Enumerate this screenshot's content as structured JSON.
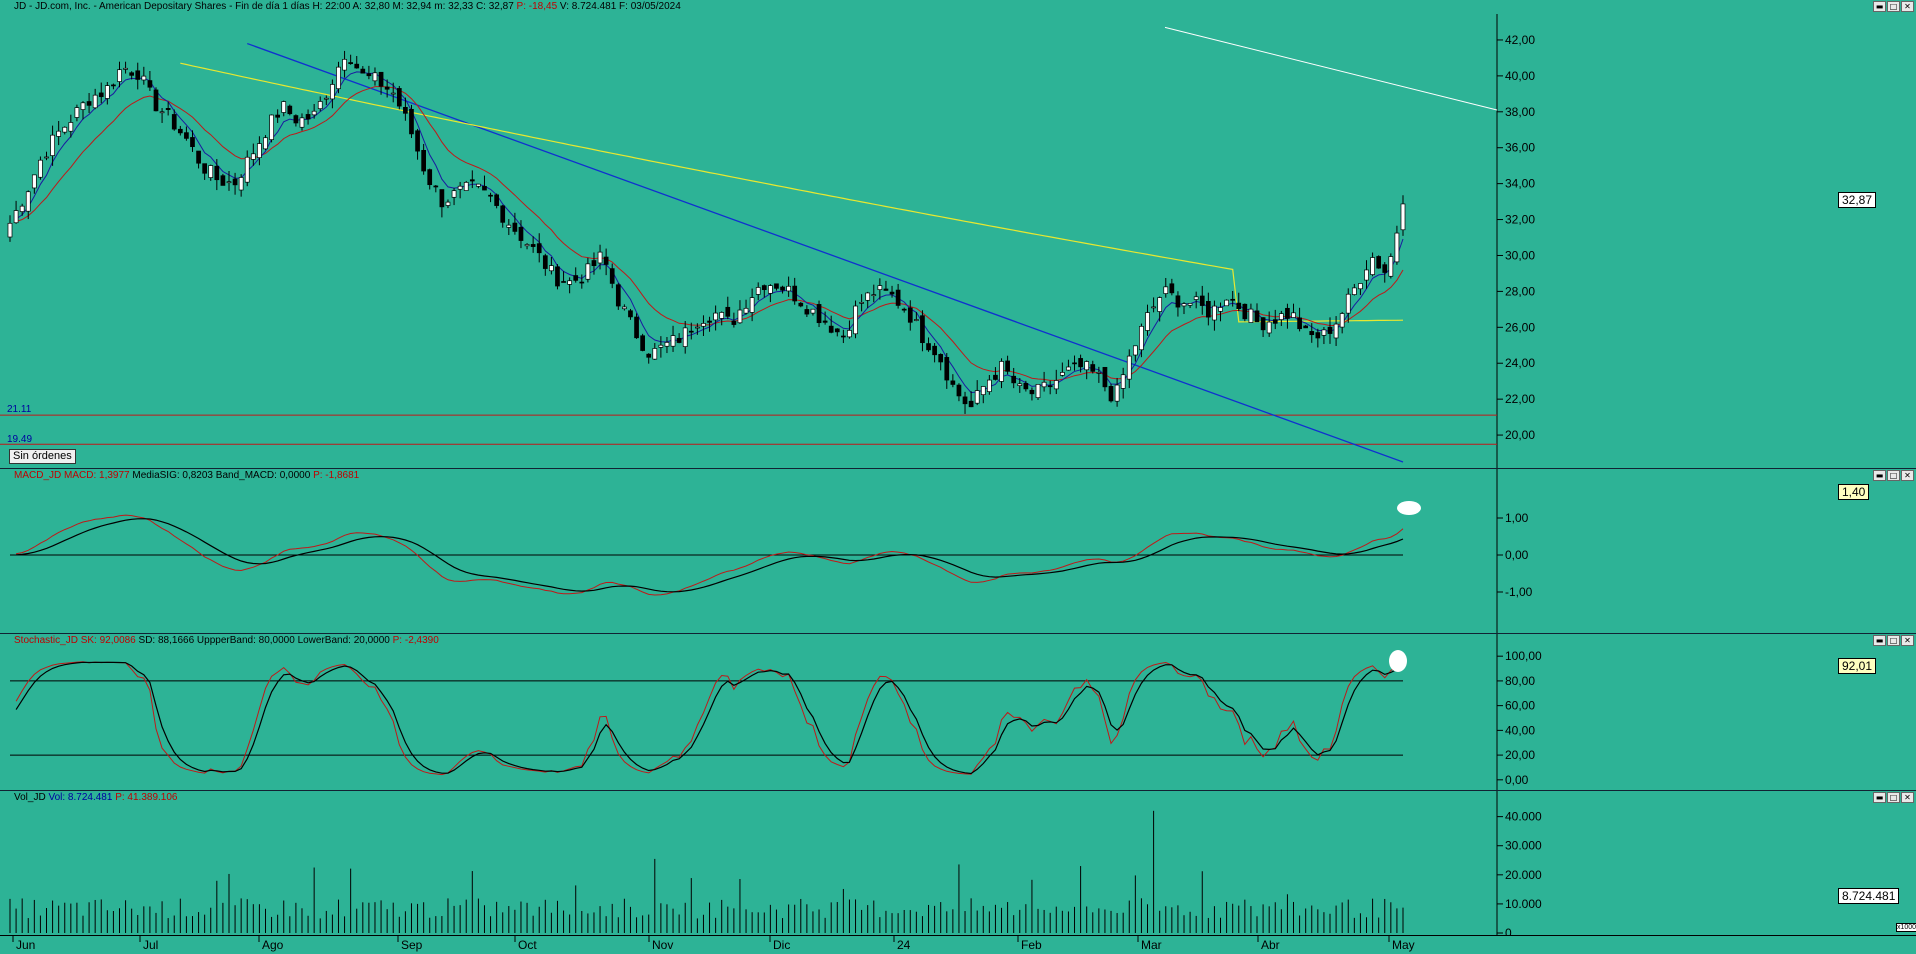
{
  "price_panel": {
    "title_symbol": "JD - JD.com, Inc. - American Depositary Shares - Fin de día 1 días",
    "title_h": "H: 22:00",
    "title_a": "A: 32,80",
    "title_m": "M: 32,94",
    "title_mm": "m: 32,33",
    "title_c": "C: 32,87",
    "title_p": "P: -18,45",
    "title_v": "V: 8.724.481",
    "title_f": "F: 03/05/2024",
    "last_badge": "32,87",
    "level_upper_label": "21.11",
    "level_lower_label": "19.49",
    "orders_label": "Sin órdenes"
  },
  "macd_panel": {
    "title_name": "MACD_JD",
    "title_macd": "MACD: 1,3977",
    "title_sig": "MediaSIG: 0,8203",
    "title_band": "Band_MACD: 0,0000",
    "title_p": "P: -1,8681",
    "last_badge": "1,40"
  },
  "stoch_panel": {
    "title_name": "Stochastic_JD",
    "title_sk": "SK: 92,0086",
    "title_sd": "SD: 88,1666",
    "title_upper": "UppperBand: 80,0000",
    "title_lower": "LowerBand: 20,0000",
    "title_p": "P: -2,4390",
    "last_badge": "92,01"
  },
  "vol_panel": {
    "title_name": "Vol_JD",
    "title_vol": "Vol: 8.724.481",
    "title_p": "P: 41.389.106",
    "last_badge": "8.724.481",
    "scale_note": "x1000"
  },
  "window_buttons": [
    "▬",
    "□",
    "✕"
  ],
  "colors": {
    "background": "#2db396",
    "ema_fast": "#1a1aa0",
    "ema_slow": "#c01818",
    "ema_long": "#e8e830",
    "trendline_blue": "#1030d0",
    "trendline_white": "#ffffff",
    "level_lines": "#c01818"
  },
  "chart_data": [
    {
      "type": "candlestick",
      "ylim": [
        18.5,
        43
      ],
      "y_ticks": [
        "20,00",
        "22,00",
        "24,00",
        "26,00",
        "28,00",
        "30,00",
        "32,00",
        "34,00",
        "36,00",
        "38,00",
        "40,00",
        "42,00"
      ],
      "x_labels": [
        "Jun",
        "Jul",
        "Ago",
        "Sep",
        "Oct",
        "Nov",
        "Dic",
        "24",
        "Feb",
        "Mar",
        "Abr",
        "May"
      ],
      "levels": [
        21.11,
        19.49
      ],
      "close_anchors": [
        31.8,
        33.5,
        35.5,
        36.8,
        37.8,
        38.8,
        39.2,
        40.5,
        40.2,
        38.5,
        37.6,
        36.5,
        35.0,
        34.2,
        34.0,
        35.5,
        37.0,
        38.3,
        37.5,
        37.8,
        39.5,
        41.5,
        40.0,
        39.7,
        39.0,
        37.0,
        34.5,
        33.0,
        33.5,
        33.8,
        33.2,
        32.0,
        31.0,
        30.0,
        28.8,
        28.5,
        29.0,
        30.0,
        27.5,
        25.8,
        24.5,
        25.0,
        25.5,
        26.5,
        26.8,
        26.2,
        27.5,
        28.5,
        28.4,
        27.8,
        27.0,
        26.3,
        25.5,
        27.3,
        28.0,
        27.8,
        27.0,
        25.5,
        24.5,
        22.5,
        21.5,
        23.0,
        23.8,
        22.5,
        22.3,
        22.8,
        23.5,
        23.8,
        23.2,
        22.0,
        24.5,
        26.5,
        28.0,
        27.5,
        27.3,
        26.8,
        27.8,
        27.0,
        26.2,
        26.5,
        26.8,
        25.5,
        25.5,
        26.5,
        28.2,
        30.0,
        29.0,
        32.87
      ]
    },
    {
      "type": "line",
      "name": "MACD",
      "ylim": [
        -2.0,
        2.0
      ],
      "y_ticks": [
        "-1,00",
        "0,00",
        "1,00"
      ]
    },
    {
      "type": "line",
      "name": "Stochastic",
      "ylim": [
        -5,
        105
      ],
      "y_ticks": [
        "0,00",
        "20,00",
        "40,00",
        "60,00",
        "80,00",
        "100,00"
      ],
      "bands": [
        80,
        20
      ]
    },
    {
      "type": "bar",
      "name": "Volume",
      "ylim": [
        0,
        44000
      ],
      "y_ticks": [
        "0",
        "10.000",
        "20.000",
        "30.000",
        "40.000"
      ]
    }
  ]
}
